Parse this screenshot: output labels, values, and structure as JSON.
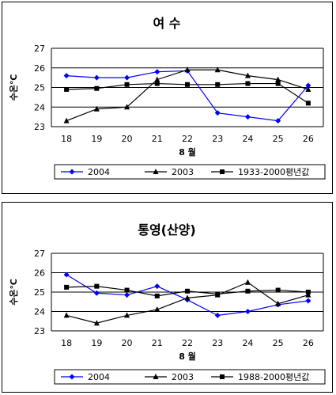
{
  "chart_data": [
    {
      "type": "line",
      "title": "여  수",
      "xlabel": "8 월",
      "ylabel": "수온℃",
      "ylim": [
        23,
        27
      ],
      "yticks": [
        23,
        24,
        25,
        26,
        27
      ],
      "grid": true,
      "legend": "bottom",
      "categories": [
        "18",
        "19",
        "20",
        "21",
        "22",
        "23",
        "24",
        "25",
        "26"
      ],
      "series": [
        {
          "name": "2004",
          "color": "#0000ff",
          "marker": "diamond",
          "values": [
            25.6,
            25.5,
            25.5,
            25.8,
            25.85,
            23.7,
            23.5,
            23.3,
            25.1
          ]
        },
        {
          "name": "2003",
          "color": "#000000",
          "marker": "triangle",
          "values": [
            23.3,
            23.9,
            24.0,
            25.4,
            25.9,
            25.9,
            25.6,
            25.4,
            24.9
          ]
        },
        {
          "name": "1933-2000평년값",
          "color": "#000000",
          "marker": "square",
          "values": [
            24.9,
            24.95,
            25.15,
            25.2,
            25.15,
            25.15,
            25.2,
            25.2,
            24.2
          ]
        }
      ]
    },
    {
      "type": "line",
      "title": "통영(산양)",
      "xlabel": "8 월",
      "ylabel": "수온℃",
      "ylim": [
        23,
        27
      ],
      "yticks": [
        23,
        24,
        25,
        26,
        27
      ],
      "grid": true,
      "legend": "bottom",
      "categories": [
        "18",
        "19",
        "20",
        "21",
        "22",
        "23",
        "24",
        "25",
        "26"
      ],
      "series": [
        {
          "name": "2004",
          "color": "#0000ff",
          "marker": "diamond",
          "values": [
            25.9,
            24.95,
            24.85,
            25.3,
            24.6,
            23.8,
            24.0,
            24.35,
            24.55
          ]
        },
        {
          "name": "2003",
          "color": "#000000",
          "marker": "triangle",
          "values": [
            23.8,
            23.4,
            23.8,
            24.1,
            24.7,
            24.85,
            25.5,
            24.4,
            24.85
          ]
        },
        {
          "name": "1988-2000평년값",
          "color": "#000000",
          "marker": "square",
          "values": [
            25.25,
            25.3,
            25.1,
            24.8,
            25.05,
            24.9,
            25.05,
            25.1,
            25.0
          ]
        }
      ]
    }
  ]
}
